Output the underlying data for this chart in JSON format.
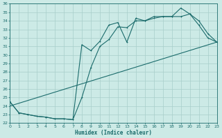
{
  "xlabel": "Humidex (Indice chaleur)",
  "bg_color": "#cceae6",
  "grid_color": "#a8ceca",
  "line_color": "#1a6b6b",
  "xlim": [
    0,
    23
  ],
  "ylim": [
    22,
    36
  ],
  "xticks": [
    0,
    1,
    2,
    3,
    4,
    5,
    6,
    7,
    8,
    9,
    10,
    11,
    12,
    13,
    14,
    15,
    16,
    17,
    18,
    19,
    20,
    21,
    22,
    23
  ],
  "yticks": [
    22,
    23,
    24,
    25,
    26,
    27,
    28,
    29,
    30,
    31,
    32,
    33,
    34,
    35,
    36
  ],
  "curve1_x": [
    0,
    1,
    2,
    3,
    4,
    5,
    6,
    7,
    8,
    9,
    10,
    11,
    12,
    13,
    14,
    15,
    16,
    17,
    18,
    19,
    20,
    21,
    22,
    23
  ],
  "curve1_y": [
    24.5,
    23.2,
    23.0,
    22.8,
    22.7,
    22.5,
    22.5,
    22.4,
    31.2,
    30.5,
    31.6,
    33.5,
    33.8,
    31.5,
    34.3,
    34.0,
    34.5,
    34.5,
    34.5,
    35.5,
    34.8,
    34.0,
    32.5,
    31.5
  ],
  "curve2_x": [
    0,
    1,
    2,
    3,
    4,
    5,
    6,
    7,
    8,
    9,
    10,
    11,
    12,
    13,
    14,
    15,
    16,
    17,
    18,
    19,
    20,
    21,
    22,
    23
  ],
  "curve2_y": [
    24.5,
    23.2,
    23.0,
    22.8,
    22.7,
    22.5,
    22.5,
    22.4,
    25.0,
    28.5,
    31.0,
    31.8,
    33.3,
    33.2,
    34.0,
    34.0,
    34.3,
    34.5,
    34.5,
    34.5,
    34.8,
    33.5,
    32.0,
    31.5
  ],
  "line3_x": [
    0,
    23
  ],
  "line3_y": [
    24.0,
    31.5
  ]
}
